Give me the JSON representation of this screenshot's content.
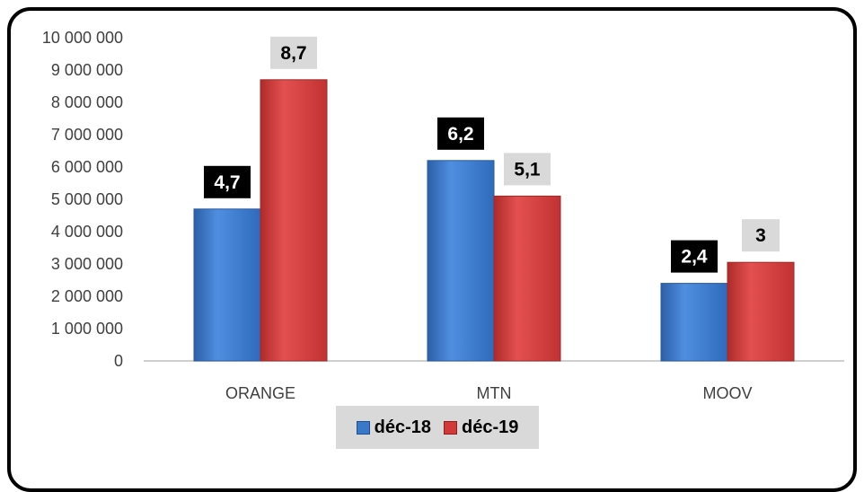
{
  "chart_data": {
    "type": "bar",
    "categories": [
      "ORANGE",
      "MTN",
      "MOOV"
    ],
    "series": [
      {
        "name": "déc-18",
        "values": [
          4700000,
          6200000,
          2400000
        ],
        "labels": [
          "4,7",
          "6,2",
          "2,4"
        ],
        "color": "#3a78c9"
      },
      {
        "name": "déc-19",
        "values": [
          8700000,
          5100000,
          3050000
        ],
        "labels": [
          "8,7",
          "5,1",
          "3"
        ],
        "color": "#d23a3a"
      }
    ],
    "ylim": [
      0,
      10000000
    ],
    "yticks": [
      0,
      1000000,
      2000000,
      3000000,
      4000000,
      5000000,
      6000000,
      7000000,
      8000000,
      9000000,
      10000000
    ],
    "ytick_labels": [
      "0",
      "1 000 000",
      "2 000 000",
      "3 000 000",
      "4 000 000",
      "5 000 000",
      "6 000 000",
      "7 000 000",
      "8 000 000",
      "9 000 000",
      "10 000 000"
    ],
    "grid": false,
    "legend_position": "bottom",
    "title": "",
    "xlabel": "",
    "ylabel": ""
  }
}
